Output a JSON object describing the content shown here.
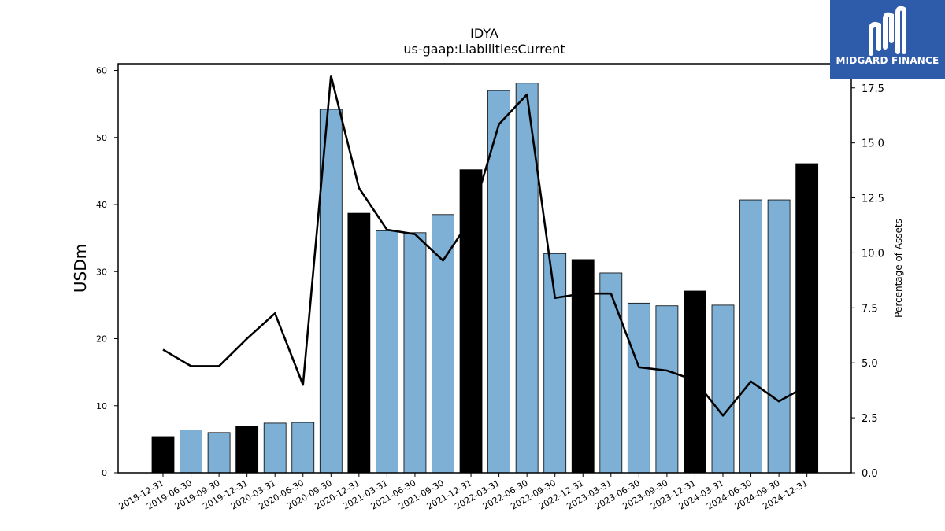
{
  "chart_data": {
    "type": "bar",
    "title": "IDYA",
    "subtitle": "us-gaap:LiabilitiesCurrent",
    "ylabel": "USDm",
    "y2label": "Percentage of Assets",
    "categories": [
      "2018-12-31",
      "2019-06-30",
      "2019-09-30",
      "2019-12-31",
      "2020-03-31",
      "2020-06-30",
      "2020-09-30",
      "2020-12-31",
      "2021-03-31",
      "2021-06-30",
      "2021-09-30",
      "2021-12-31",
      "2022-03-31",
      "2022-06-30",
      "2022-09-30",
      "2022-12-31",
      "2023-03-31",
      "2023-06-30",
      "2023-09-30",
      "2023-12-31",
      "2024-03-31",
      "2024-06-30",
      "2024-09-30",
      "2024-12-31"
    ],
    "series": [
      {
        "values": [
          5.4,
          6.4,
          6.0,
          6.9,
          7.4,
          7.5,
          54.2,
          38.7,
          36.1,
          35.8,
          38.5,
          45.2,
          57.0,
          58.1,
          32.7,
          31.8,
          29.8,
          25.3,
          24.9,
          27.1,
          25.0,
          40.7,
          40.7,
          46.1
        ]
      },
      {
        "values": [
          5.6,
          4.85,
          4.85,
          6.1,
          7.25,
          4.0,
          18.05,
          12.95,
          11.05,
          10.85,
          9.65,
          11.55,
          15.85,
          17.2,
          7.95,
          8.15,
          8.15,
          4.8,
          4.65,
          4.2,
          2.6,
          4.15,
          3.25,
          3.95
        ]
      }
    ],
    "year_end_highlight": [
      true,
      false,
      false,
      true,
      false,
      false,
      false,
      true,
      false,
      false,
      false,
      true,
      false,
      false,
      false,
      true,
      false,
      false,
      false,
      true,
      false,
      false,
      false,
      true
    ],
    "ylim": [
      0,
      61
    ],
    "y2lim": [
      0,
      18.6
    ],
    "yticks": [
      0,
      10,
      20,
      30,
      40,
      50,
      60
    ],
    "y2ticks": [
      "0.0",
      "2.5",
      "5.0",
      "7.5",
      "10.0",
      "12.5",
      "15.0",
      "17.5"
    ],
    "colors": {
      "bar": "#7eb0d5",
      "bar_year_end": "#000000",
      "line": "#000000"
    }
  },
  "logo": {
    "text": "MIDGARD FINANCE",
    "color": "#2f5bab"
  }
}
